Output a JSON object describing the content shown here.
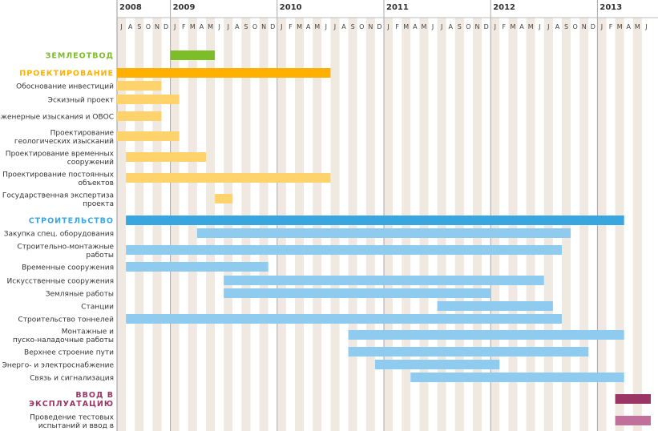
{
  "chart_data": {
    "type": "gantt",
    "timeline": {
      "start": "2008-07",
      "end": "2013-06"
    },
    "years": [
      "2008",
      "2009",
      "2010",
      "2011",
      "2012",
      "2013"
    ],
    "month_letters": [
      "J",
      "F",
      "M",
      "A",
      "M",
      "J",
      "J",
      "A",
      "S",
      "O",
      "N",
      "D"
    ],
    "colors": {
      "green": "#7dbd27",
      "orange": "#ffb000",
      "orange_light": "#ffd36b",
      "blue": "#3aa6e0",
      "blue_light": "#8fcbef",
      "purple": "#9a3565",
      "purple_light": "#c0709a",
      "stripe_a": "#efe9e1",
      "stripe_b": "#ffffff"
    },
    "rows": [
      {
        "kind": "phase",
        "label": "ЗЕМЛЕОТВОД",
        "color": "#7dbd27",
        "bars": [
          {
            "start": "2009-01",
            "end": "2009-05",
            "color": "#7dbd27"
          }
        ]
      },
      {
        "kind": "phase",
        "label": "ПРОЕКТИРОВАНИЕ",
        "color": "#ffb000",
        "bars": [
          {
            "start": "2008-07",
            "end": "2010-06",
            "color": "#ffb000"
          }
        ]
      },
      {
        "kind": "task",
        "label": "Обоснование инвестиций",
        "bars": [
          {
            "start": "2008-07",
            "end": "2008-11",
            "color": "#ffd36b"
          }
        ]
      },
      {
        "kind": "task",
        "label": "Эскизный проект",
        "bars": [
          {
            "start": "2008-07",
            "end": "2009-01",
            "color": "#ffd36b"
          }
        ]
      },
      {
        "kind": "task",
        "label": "Инженерные изыскания и ОВОС",
        "bars": [
          {
            "start": "2008-07",
            "end": "2008-11",
            "color": "#ffd36b"
          }
        ]
      },
      {
        "kind": "task",
        "label": "Проектирование геологических изысканий",
        "bars": [
          {
            "start": "2008-07",
            "end": "2009-01",
            "color": "#ffd36b"
          }
        ]
      },
      {
        "kind": "task",
        "label": "Проектирование временных сооружений",
        "bars": [
          {
            "start": "2008-08",
            "end": "2009-04",
            "color": "#ffd36b"
          }
        ]
      },
      {
        "kind": "task",
        "label": "Проектирование постоянных объектов",
        "bars": [
          {
            "start": "2008-08",
            "end": "2010-06",
            "color": "#ffd36b"
          }
        ]
      },
      {
        "kind": "task",
        "label": "Государственная экспертиза проекта",
        "bars": [
          {
            "start": "2009-06",
            "end": "2009-07",
            "color": "#ffd36b"
          }
        ]
      },
      {
        "kind": "gap"
      },
      {
        "kind": "phase",
        "label": "СТРОИТЕЛЬСТВО",
        "color": "#3aa6e0",
        "bars": [
          {
            "start": "2008-08",
            "end": "2013-03",
            "color": "#3aa6e0"
          }
        ]
      },
      {
        "kind": "task",
        "label": "Закупка спец. оборудования",
        "bars": [
          {
            "start": "2009-04",
            "end": "2012-09",
            "color": "#8fcbef"
          }
        ]
      },
      {
        "kind": "task",
        "label": "Строительно-монтажные работы",
        "bars": [
          {
            "start": "2008-08",
            "end": "2012-08",
            "color": "#8fcbef"
          }
        ]
      },
      {
        "kind": "task",
        "label": "Временные сооружения",
        "bars": [
          {
            "start": "2008-08",
            "end": "2009-11",
            "color": "#8fcbef"
          }
        ]
      },
      {
        "kind": "task",
        "label": "Искусственные сооружения",
        "bars": [
          {
            "start": "2009-07",
            "end": "2012-06",
            "color": "#8fcbef"
          }
        ]
      },
      {
        "kind": "task",
        "label": "Земляные работы",
        "bars": [
          {
            "start": "2009-07",
            "end": "2011-12",
            "color": "#8fcbef"
          }
        ]
      },
      {
        "kind": "task",
        "label": "Станции",
        "bars": [
          {
            "start": "2011-07",
            "end": "2012-07",
            "color": "#8fcbef"
          }
        ]
      },
      {
        "kind": "task",
        "label": "Строительство тоннелей",
        "bars": [
          {
            "start": "2008-08",
            "end": "2012-08",
            "color": "#8fcbef"
          }
        ]
      },
      {
        "kind": "task",
        "label": "Монтажные и пуско-наладочные работы",
        "bars": [
          {
            "start": "2010-09",
            "end": "2013-03",
            "color": "#8fcbef"
          }
        ]
      },
      {
        "kind": "task",
        "label": "Верхнее строение пути",
        "bars": [
          {
            "start": "2010-09",
            "end": "2012-11",
            "color": "#8fcbef"
          }
        ]
      },
      {
        "kind": "task",
        "label": "Энерго- и электроснабжение",
        "bars": [
          {
            "start": "2010-12",
            "end": "2012-01",
            "color": "#8fcbef"
          }
        ]
      },
      {
        "kind": "task",
        "label": "Связь и сигнализация",
        "bars": [
          {
            "start": "2011-04",
            "end": "2013-03",
            "color": "#8fcbef"
          }
        ]
      },
      {
        "kind": "gap"
      },
      {
        "kind": "phase",
        "label": "ВВОД В ЭКСПЛУАТАЦИЮ",
        "color": "#9a3565",
        "bars": [
          {
            "start": "2013-03",
            "end": "2013-06",
            "color": "#9a3565"
          }
        ]
      },
      {
        "kind": "task",
        "label": "Проведение тестовых испытаний и ввод в",
        "bars": [
          {
            "start": "2013-03",
            "end": "2013-06",
            "color": "#c0709a"
          }
        ]
      }
    ]
  }
}
